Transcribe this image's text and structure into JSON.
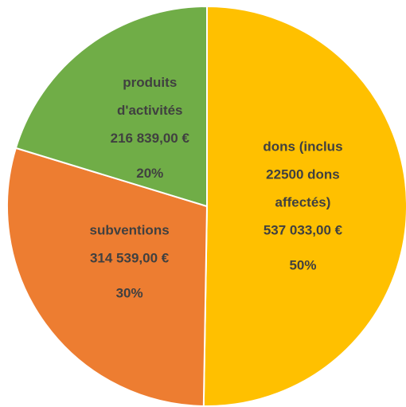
{
  "chart_data": {
    "type": "pie",
    "categories": [
      [
        "dons (inclus",
        "22500 dons",
        "affectés)"
      ],
      [
        "subventions"
      ],
      [
        "produits",
        "d'activités"
      ]
    ],
    "values": [
      537033,
      314539,
      216839
    ],
    "value_labels": [
      "537 033,00 €",
      "314 539,00 €",
      "216 839,00 €"
    ],
    "percentages": [
      50,
      30,
      20
    ],
    "percentage_labels": [
      "50%",
      "30%",
      "20%"
    ],
    "colors": [
      "#FFC000",
      "#ED7D31",
      "#70AD47"
    ]
  }
}
